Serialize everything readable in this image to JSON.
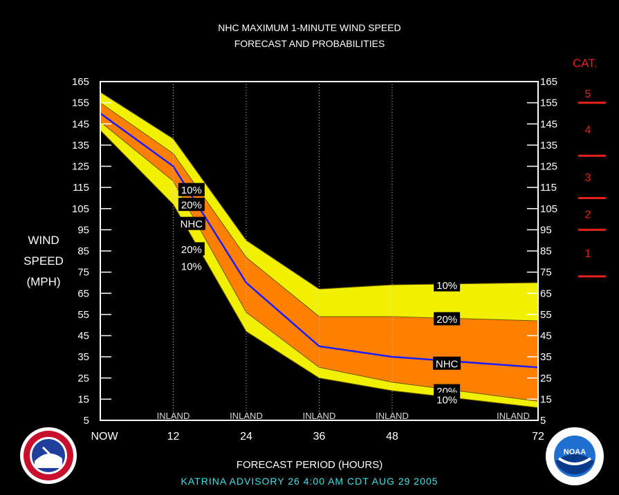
{
  "title_line1": "NHC MAXIMUM 1-MINUTE WIND SPEED",
  "title_line2": "FORECAST AND PROBABILITIES",
  "ylabel_lines": [
    "WIND",
    "SPEED",
    "(MPH)"
  ],
  "xlabel": "FORECAST PERIOD (HOURS)",
  "advisory": "KATRINA   ADVISORY  26  4:00  AM  CDT  AUG 29  2005",
  "category_header": "CAT.",
  "categories": [
    {
      "label": "5",
      "from": 155,
      "to": 165
    },
    {
      "label": "4",
      "from": 130,
      "to": 155
    },
    {
      "label": "3",
      "from": 110,
      "to": 130
    },
    {
      "label": "2",
      "from": 95,
      "to": 110
    },
    {
      "label": "1",
      "from": 73,
      "to": 95
    }
  ],
  "category_boundaries": [
    155,
    130,
    110,
    95,
    73
  ],
  "colors": {
    "background": "#000000",
    "outer_band": "#f0f000",
    "inner_band": "#ff8000",
    "nhc_line": "#1c1cff",
    "gridline": "#d0d0d0",
    "category": "#e8201c",
    "advisory": "#3ee0e8"
  },
  "logos": {
    "left": "NOAA National Weather Service logo",
    "right": "NOAA logo",
    "right_text": "NOAA"
  },
  "chart_data": {
    "type": "area",
    "x_range": [
      0,
      72
    ],
    "y_range": [
      5,
      165
    ],
    "y_ticks": [
      165,
      155,
      145,
      135,
      125,
      115,
      105,
      95,
      85,
      75,
      65,
      55,
      45,
      35,
      25,
      15,
      5
    ],
    "x_ticks": [
      {
        "x": 0,
        "label": "NOW"
      },
      {
        "x": 12,
        "label": "12"
      },
      {
        "x": 24,
        "label": "24"
      },
      {
        "x": 36,
        "label": "36"
      },
      {
        "x": 48,
        "label": "48"
      },
      {
        "x": 72,
        "label": "72"
      }
    ],
    "inland_label": "INLAND",
    "inland_at": [
      12,
      24,
      36,
      48,
      72
    ],
    "x": [
      0,
      12,
      24,
      36,
      48,
      72
    ],
    "series": [
      {
        "name": "10%",
        "values": [
          160,
          138,
          90,
          67,
          69,
          70
        ]
      },
      {
        "name": "20%",
        "values": [
          155,
          131,
          82,
          54,
          54,
          52
        ]
      },
      {
        "name": "NHC",
        "values": [
          150,
          125,
          70,
          40,
          35,
          30
        ]
      },
      {
        "name": "20%",
        "values": [
          146,
          118,
          56,
          30,
          23,
          14
        ]
      },
      {
        "name": "10%",
        "values": [
          142,
          107,
          47,
          25,
          19,
          11
        ]
      }
    ],
    "series_labels": [
      {
        "text": "10%",
        "x": 15,
        "y": 114
      },
      {
        "text": "20%",
        "x": 15,
        "y": 107
      },
      {
        "text": "NHC",
        "x": 15,
        "y": 98
      },
      {
        "text": "20%",
        "x": 15,
        "y": 86
      },
      {
        "text": "10%",
        "x": 15,
        "y": 78
      },
      {
        "text": "10%",
        "x": 57,
        "y": 69
      },
      {
        "text": "20%",
        "x": 57,
        "y": 53
      },
      {
        "text": "NHC",
        "x": 57,
        "y": 32
      },
      {
        "text": "20%",
        "x": 57,
        "y": 19
      },
      {
        "text": "10%",
        "x": 57,
        "y": 15
      }
    ]
  }
}
